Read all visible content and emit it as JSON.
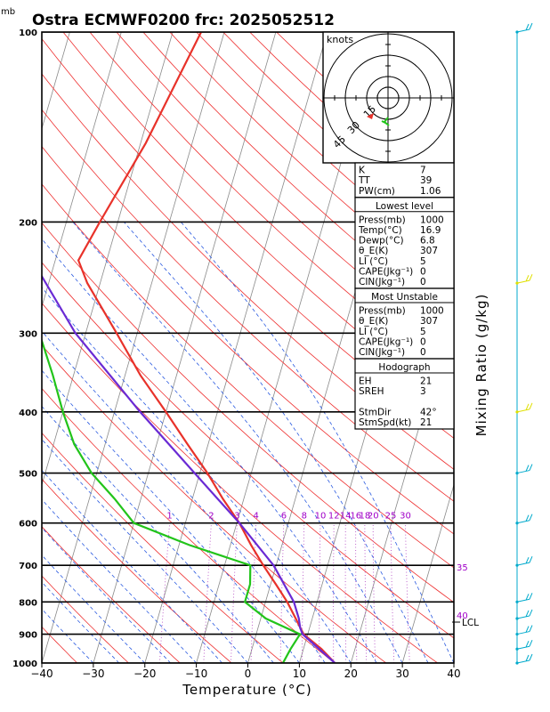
{
  "header": {
    "unit_top": "mb",
    "title": "Ostra ECMWF0200  frc: 2025052512"
  },
  "chart_data": {
    "type": "line",
    "chart_kind": "skew-T log-P sounding",
    "title": "Ostra ECMWF0200  frc: 2025052512",
    "xlabel": "Temperature (°C)",
    "ylabel_right": "Mixing Ratio (g/kg)",
    "pressure_label": "mb",
    "pressure_axis": {
      "scale": "log",
      "range": [
        1000,
        100
      ],
      "ticks": [
        "100",
        "200",
        "300",
        "400",
        "500",
        "600",
        "700",
        "800",
        "900",
        "1000"
      ]
    },
    "temperature_axis": {
      "range": [
        -40,
        40
      ],
      "ticks": [
        "−40",
        "−30",
        "−20",
        "−10",
        "0",
        "10",
        "20",
        "30",
        "40"
      ]
    },
    "mixing_ratio_labels": [
      "1",
      "2",
      "3",
      "4",
      "6",
      "8",
      "10",
      "12",
      "14",
      "16",
      "18",
      "20",
      "25",
      "30"
    ],
    "side_labels": {
      "m35": "35",
      "m40": "40",
      "lcl": "LCL"
    },
    "series": [
      {
        "name": "temperature",
        "color": "#e8322a",
        "points": [
          [
            1000,
            16.9
          ],
          [
            950,
            13.5
          ],
          [
            900,
            9.2
          ],
          [
            850,
            6.8
          ],
          [
            800,
            4.2
          ],
          [
            750,
            1.0
          ],
          [
            700,
            -2.5
          ],
          [
            650,
            -6.0
          ],
          [
            600,
            -9.5
          ],
          [
            550,
            -14.0
          ],
          [
            500,
            -18.5
          ],
          [
            450,
            -24.0
          ],
          [
            400,
            -30.0
          ],
          [
            350,
            -37.0
          ],
          [
            300,
            -44.0
          ],
          [
            250,
            -52.5
          ],
          [
            230,
            -55.5
          ],
          [
            200,
            -53.5
          ],
          [
            150,
            -49.0
          ],
          [
            100,
            -44.5
          ]
        ]
      },
      {
        "name": "dewpoint",
        "color": "#22c41a",
        "points": [
          [
            1000,
            6.8
          ],
          [
            950,
            7.5
          ],
          [
            900,
            8.5
          ],
          [
            850,
            1.0
          ],
          [
            800,
            -4.0
          ],
          [
            750,
            -4.0
          ],
          [
            700,
            -5.0
          ],
          [
            650,
            -18.0
          ],
          [
            600,
            -30.0
          ],
          [
            550,
            -35.0
          ],
          [
            500,
            -41.0
          ],
          [
            450,
            -46.0
          ],
          [
            400,
            -50.0
          ],
          [
            350,
            -54.0
          ],
          [
            300,
            -59.0
          ],
          [
            250,
            -65.0
          ],
          [
            200,
            -71.0
          ],
          [
            150,
            -77.0
          ],
          [
            100,
            -84.0
          ]
        ]
      },
      {
        "name": "parcel",
        "color": "#6a2ad4",
        "points": [
          [
            1000,
            16.9
          ],
          [
            900,
            9.0
          ],
          [
            880,
            8.2
          ],
          [
            850,
            7.4
          ],
          [
            800,
            5.5
          ],
          [
            700,
            -0.5
          ],
          [
            600,
            -9.5
          ],
          [
            500,
            -21.0
          ],
          [
            400,
            -35.0
          ],
          [
            300,
            -52.0
          ],
          [
            200,
            -71.0
          ],
          [
            100,
            -87.0
          ]
        ]
      }
    ],
    "wind_barbs_color": "#00aacc",
    "wind_barbs_highlight_color": "#e0e000",
    "hodograph": {
      "units_label": "knots",
      "ring_labels": [
        "15",
        "30",
        "45"
      ],
      "trace_color": "#22c41a",
      "storm_motion_color": "#e8322a"
    },
    "indices": {
      "rows": [
        [
          "K",
          "7"
        ],
        [
          "TT",
          "39"
        ],
        [
          "PW(cm)",
          "1.06"
        ]
      ]
    },
    "lowest_level": {
      "heading": "Lowest level",
      "rows": [
        [
          "Press(mb)",
          "1000"
        ],
        [
          "Temp(°C)",
          "16.9"
        ],
        [
          "Dewp(°C)",
          "6.8"
        ],
        [
          "θ_E(K)",
          "307"
        ],
        [
          "LI (°C)",
          "5"
        ],
        [
          "CAPE(Jkg⁻¹)",
          "0"
        ],
        [
          "CIN(Jkg⁻¹)",
          "0"
        ]
      ]
    },
    "most_unstable": {
      "heading": "Most Unstable",
      "rows": [
        [
          "Press(mb)",
          "1000"
        ],
        [
          "θ_E(K)",
          "307"
        ],
        [
          "LI (°C)",
          "5"
        ],
        [
          "CAPE(Jkg⁻¹)",
          "0"
        ],
        [
          "CIN(Jkg⁻¹)",
          "0"
        ]
      ]
    },
    "hodograph_table": {
      "heading": "Hodograph",
      "rows": [
        [
          "EH",
          "21"
        ],
        [
          "SREH",
          "3"
        ],
        [
          "",
          ""
        ],
        [
          "StmDir",
          "42°"
        ],
        [
          "StmSpd(kt)",
          "21"
        ]
      ]
    }
  }
}
